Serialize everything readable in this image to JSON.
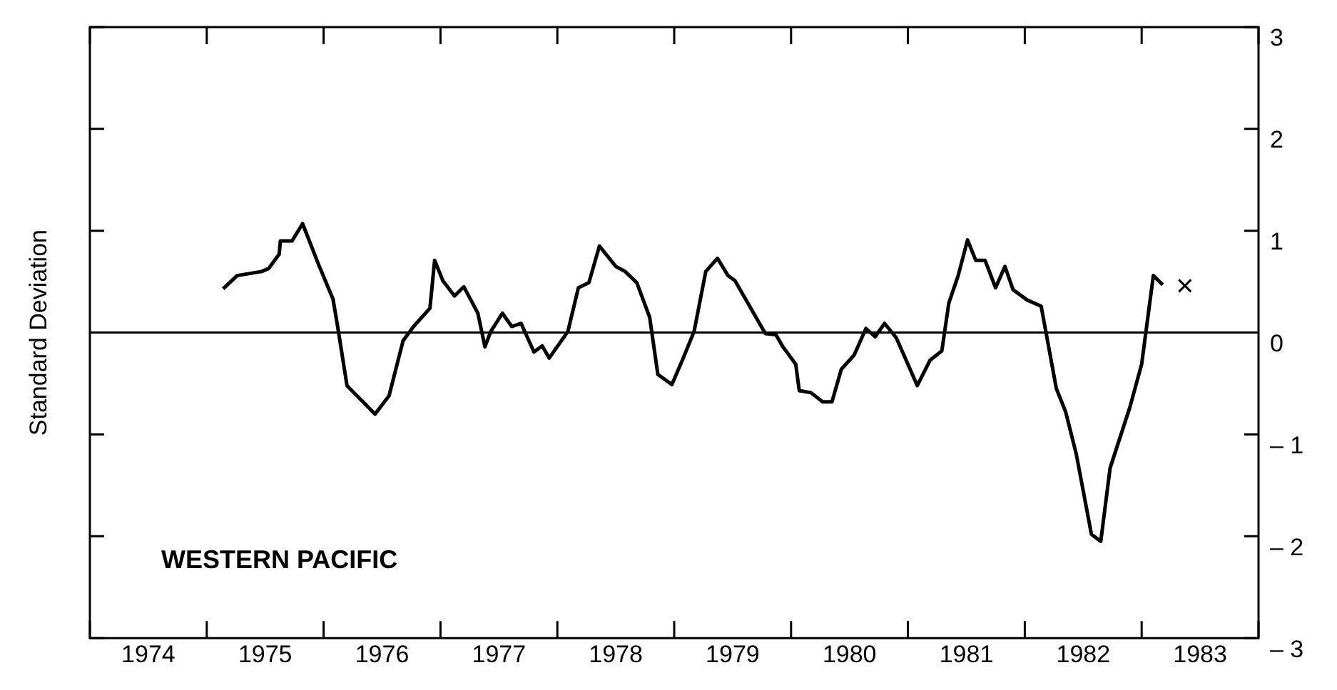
{
  "chart_data": {
    "type": "line",
    "ylabel": "Standard Deviation",
    "annotations": [
      "WESTERN PACIFIC"
    ],
    "xlim": [
      1974,
      1984
    ],
    "xticks": [
      {
        "value": 1974,
        "label": null
      },
      {
        "value": 1974.5,
        "label": "1974"
      },
      {
        "value": 1975,
        "label": null
      },
      {
        "value": 1975.5,
        "label": "1975"
      },
      {
        "value": 1976,
        "label": null
      },
      {
        "value": 1976.5,
        "label": "1976"
      },
      {
        "value": 1977,
        "label": null
      },
      {
        "value": 1977.5,
        "label": "1977"
      },
      {
        "value": 1978,
        "label": null
      },
      {
        "value": 1978.5,
        "label": "1978"
      },
      {
        "value": 1979,
        "label": null
      },
      {
        "value": 1979.5,
        "label": "1979"
      },
      {
        "value": 1980,
        "label": null
      },
      {
        "value": 1980.5,
        "label": "1980"
      },
      {
        "value": 1981,
        "label": null
      },
      {
        "value": 1981.5,
        "label": "1981"
      },
      {
        "value": 1982,
        "label": null
      },
      {
        "value": 1982.5,
        "label": "1982"
      },
      {
        "value": 1983,
        "label": null
      },
      {
        "value": 1983.5,
        "label": "1983"
      },
      {
        "value": 1984,
        "label": null
      }
    ],
    "ylim": [
      -3,
      3
    ],
    "yticks": [
      {
        "value": -3,
        "label": "– 3"
      },
      {
        "value": -2,
        "label": "– 2"
      },
      {
        "value": -1,
        "label": "– 1"
      },
      0,
      1,
      2,
      3
    ],
    "grid": false,
    "legend": false,
    "ref_lines": [
      {
        "axis": "y",
        "value": 0,
        "color": "#000000"
      }
    ],
    "series": [
      {
        "color": "#000000",
        "marker": "none",
        "line_style": "solid",
        "x": [
          1975.14,
          1975.26,
          1975.47,
          1975.53,
          1975.62,
          1975.63,
          1975.73,
          1975.82,
          1975.96,
          1976.08,
          1976.12,
          1976.2,
          1976.26,
          1976.44,
          1976.56,
          1976.68,
          1976.77,
          1976.91,
          1976.95,
          1977.02,
          1977.12,
          1977.2,
          1977.32,
          1977.38,
          1977.43,
          1977.53,
          1977.61,
          1977.69,
          1977.8,
          1977.87,
          1977.93,
          1978.09,
          1978.18,
          1978.27,
          1978.36,
          1978.5,
          1978.58,
          1978.68,
          1978.79,
          1978.86,
          1978.98,
          1979.07,
          1979.17,
          1979.27,
          1979.37,
          1979.46,
          1979.52,
          1979.78,
          1979.87,
          1979.93,
          1980.04,
          1980.07,
          1980.17,
          1980.27,
          1980.35,
          1980.43,
          1980.54,
          1980.64,
          1980.72,
          1980.8,
          1980.9,
          1981.08,
          1981.19,
          1981.29,
          1981.35,
          1981.43,
          1981.51,
          1981.58,
          1981.66,
          1981.75,
          1981.83,
          1981.9,
          1982.02,
          1982.14,
          1982.27,
          1982.35,
          1982.44,
          1982.57,
          1982.65,
          1982.73,
          1982.9,
          1983.0,
          1983.1,
          1983.18
        ],
        "values": [
          0.43,
          0.56,
          0.6,
          0.63,
          0.77,
          0.9,
          0.9,
          1.07,
          0.66,
          0.33,
          0.06,
          -0.52,
          -0.59,
          -0.8,
          -0.62,
          -0.08,
          0.06,
          0.24,
          0.71,
          0.51,
          0.36,
          0.45,
          0.19,
          -0.14,
          0.01,
          0.19,
          0.06,
          0.09,
          -0.19,
          -0.13,
          -0.25,
          0.01,
          0.44,
          0.49,
          0.85,
          0.65,
          0.6,
          0.49,
          0.15,
          -0.41,
          -0.51,
          -0.27,
          0.01,
          0.6,
          0.73,
          0.56,
          0.51,
          -0.01,
          -0.02,
          -0.14,
          -0.31,
          -0.57,
          -0.59,
          -0.68,
          -0.68,
          -0.36,
          -0.22,
          0.04,
          -0.04,
          0.09,
          -0.05,
          -0.52,
          -0.27,
          -0.18,
          0.29,
          0.56,
          0.91,
          0.71,
          0.71,
          0.44,
          0.65,
          0.42,
          0.32,
          0.26,
          -0.55,
          -0.78,
          -1.19,
          -1.98,
          -2.05,
          -1.33,
          -0.73,
          -0.31,
          0.56,
          0.47
        ]
      },
      {
        "type": "scatter",
        "color": "#000000",
        "marker": "cross",
        "x": [
          1983.37
        ],
        "values": [
          0.46
        ]
      }
    ]
  }
}
